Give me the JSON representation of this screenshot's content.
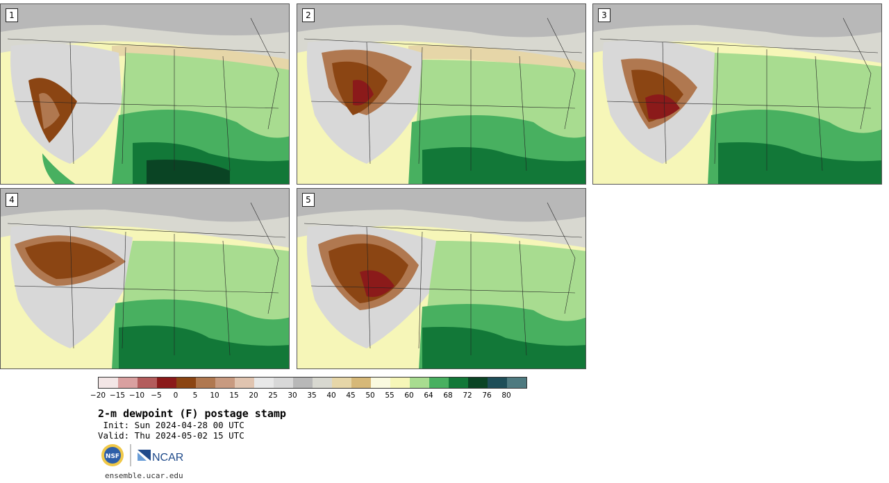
{
  "panels": [
    {
      "label": "1"
    },
    {
      "label": "2"
    },
    {
      "label": "3"
    },
    {
      "label": "4"
    },
    {
      "label": "5"
    }
  ],
  "colorbar": {
    "colors": [
      "#f3e6e6",
      "#d9a0a0",
      "#b35c5c",
      "#8b1a1a",
      "#8b4513",
      "#b07850",
      "#c89a80",
      "#e0c4b0",
      "#e8e8e8",
      "#d8d8d8",
      "#b8b8b8",
      "#d8d8d0",
      "#e6d6a8",
      "#d6b878",
      "#fafae0",
      "#f6f6b8",
      "#a8dc90",
      "#48b060",
      "#127838",
      "#0a4424",
      "#1e4e58",
      "#4e7a80"
    ],
    "ticks": [
      "−20",
      "−15",
      "−10",
      "−5",
      "0",
      "5",
      "10",
      "15",
      "20",
      "25",
      "30",
      "35",
      "40",
      "45",
      "50",
      "55",
      "60",
      "64",
      "68",
      "72",
      "76",
      "80"
    ]
  },
  "title": "2-m dewpoint (F) postage stamp",
  "init": " Init: Sun 2024-04-28 00 UTC",
  "valid": "Valid: Thu 2024-05-02 15 UTC",
  "logos": {
    "nsf_icon": "nsf-logo-icon",
    "ncar_icon": "ncar-logo-icon",
    "ncar_text": "NCAR",
    "nsf_text": "NSF"
  },
  "site": "ensemble.ucar.edu"
}
